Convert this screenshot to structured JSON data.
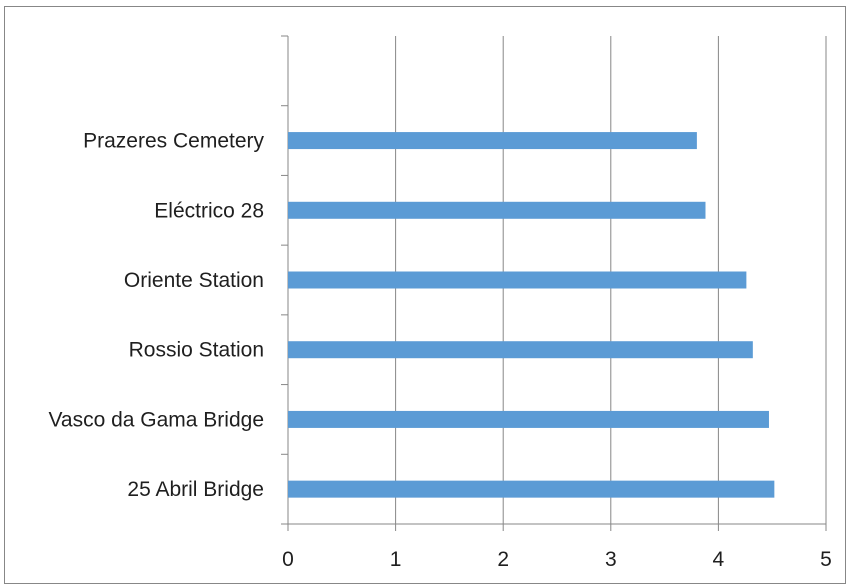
{
  "chart_data": {
    "type": "bar",
    "orientation": "horizontal",
    "title": "",
    "xlabel": "",
    "ylabel": "",
    "categories": [
      "Prazeres Cemetery",
      "Eléctrico 28",
      "Oriente Station",
      "Rossio Station",
      "Vasco da Gama Bridge",
      "25 Abril Bridge"
    ],
    "values": [
      3.8,
      3.88,
      4.26,
      4.32,
      4.47,
      4.52
    ],
    "xlim": [
      0,
      5
    ],
    "xticks": [
      "0",
      "1",
      "2",
      "3",
      "4",
      "5"
    ],
    "grid": true,
    "legend": "none",
    "bar_color": "#5b9bd5",
    "grid_color": "#878787"
  }
}
